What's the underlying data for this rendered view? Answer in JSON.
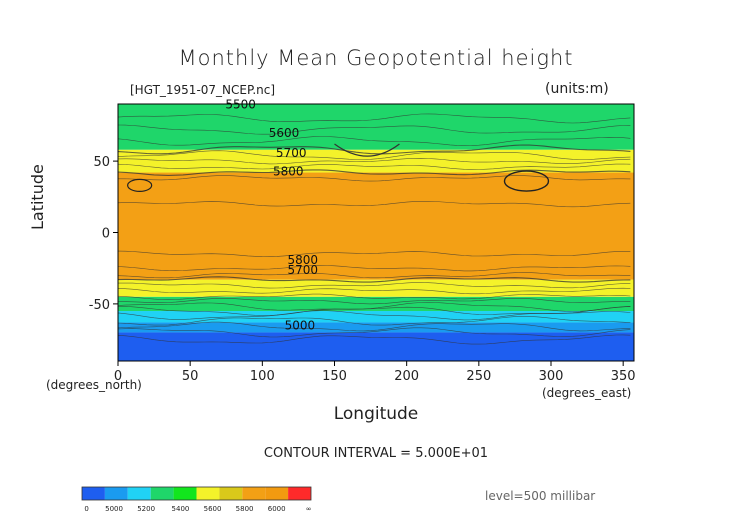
{
  "title": "Monthly Mean Geopotential height",
  "file_label": "[HGT_1951-07_NCEP.nc]",
  "units_label": "(units:m)",
  "contour_interval_label": "CONTOUR INTERVAL = 5.000E+01",
  "level_label": "level=500 millibar",
  "colorbar": {
    "colors": [
      "#1e5ef0",
      "#1a9bf0",
      "#20d2f5",
      "#1fd66a",
      "#12e61d",
      "#f4f22a",
      "#d9c91a",
      "#f3a015",
      "#f29a10",
      "#ff2a2a"
    ],
    "tick_labels": [
      "0",
      "5000",
      "5200",
      "5400",
      "5600",
      "5800",
      "6000",
      "∞"
    ]
  },
  "chart_data": {
    "type": "heatmap",
    "title": "Monthly Mean Geopotential height",
    "xlabel": "Longitude",
    "ylabel": "Latitude",
    "x_unit_label": "(degrees_east)",
    "y_unit_label": "(degrees_north)",
    "xlim": [
      0,
      357.5
    ],
    "ylim": [
      -90,
      90
    ],
    "x_ticks": [
      "0",
      "50",
      "100",
      "150",
      "200",
      "250",
      "300",
      "350"
    ],
    "y_ticks": [
      "50",
      "0",
      "-50"
    ],
    "bands": [
      {
        "lat_min": -90,
        "lat_max": -70,
        "value_range": "<5000",
        "color": "#1e5ef0"
      },
      {
        "lat_min": -70,
        "lat_max": -63,
        "value_range": "5000-5200",
        "color": "#1a9bf0"
      },
      {
        "lat_min": -63,
        "lat_max": -55,
        "value_range": "5200-5400",
        "color": "#20d2f5"
      },
      {
        "lat_min": -55,
        "lat_max": -45,
        "value_range": "5400-5600",
        "color": "#1fd66a"
      },
      {
        "lat_min": -45,
        "lat_max": -33,
        "value_range": "5600-5800",
        "color": "#f4f22a"
      },
      {
        "lat_min": -33,
        "lat_max": 42,
        "value_range": "5800-6000",
        "color": "#f3a015"
      },
      {
        "lat_min": 42,
        "lat_max": 58,
        "value_range": "5600-5800",
        "color": "#f4f22a"
      },
      {
        "lat_min": 58,
        "lat_max": 90,
        "value_range": "5400-5600",
        "color": "#1fd66a"
      }
    ],
    "contour_labels": [
      {
        "text": "5500",
        "lon": 85,
        "lat": 87
      },
      {
        "text": "5600",
        "lon": 115,
        "lat": 67
      },
      {
        "text": "5700",
        "lon": 120,
        "lat": 53
      },
      {
        "text": "5800",
        "lon": 118,
        "lat": 40
      },
      {
        "text": "5800",
        "lon": 128,
        "lat": -22
      },
      {
        "text": "5700",
        "lon": 128,
        "lat": -29
      },
      {
        "text": "5000",
        "lon": 126,
        "lat": -68
      }
    ]
  }
}
